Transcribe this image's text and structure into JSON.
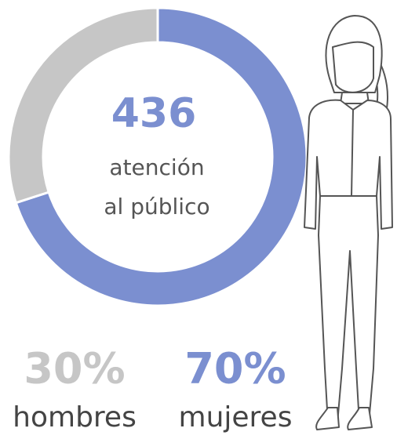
{
  "chart_data": {
    "type": "donut",
    "total": 436,
    "center_label_lines": [
      "atención",
      "al público"
    ],
    "categories": [
      "hombres",
      "mujeres"
    ],
    "values": [
      30,
      70
    ],
    "value_labels": [
      "30%",
      "70%"
    ],
    "colors": [
      "#c6c6c6",
      "#7b8fd0"
    ]
  }
}
